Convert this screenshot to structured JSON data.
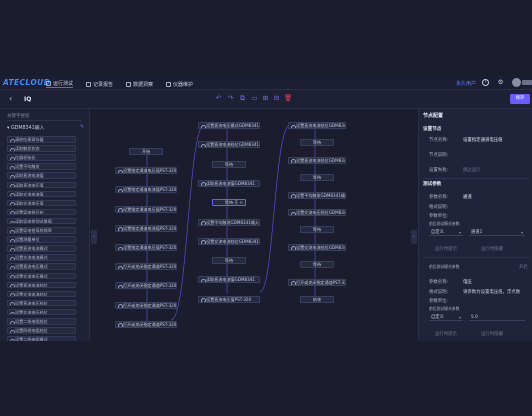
{
  "app": {
    "logo": "ATECLOUD",
    "nav": [
      {
        "label": "运行测试",
        "icon": "monitor-icon"
      },
      {
        "label": "记录报告",
        "icon": "document-icon"
      },
      {
        "label": "数据洞察",
        "icon": "chart-icon"
      },
      {
        "label": "仪器维护",
        "icon": "instrument-icon"
      }
    ],
    "user_link": "永久用户",
    "help_icon": "?",
    "settings_icon": "⚙"
  },
  "toolbar": {
    "back": "‹",
    "flow_title": "IQ",
    "tools": [
      "↶",
      "↷",
      "⧉",
      "▭",
      "⊞",
      "⊟",
      "▤",
      "⎘",
      "🗑"
    ],
    "publish_label": "保存"
  },
  "palette": {
    "search_placeholder": "关键字搜索",
    "group_title": "GDM8341输入",
    "items": [
      "清除仪表寄存器",
      "读取触发状态",
      "仪器初始化",
      "设置平均触发",
      "读取直流电流值",
      "读取直流电压值",
      "读取交流电流值",
      "读取交流电压值",
      "设置导电钳开启",
      "读取导电钳测试量值",
      "设置导电钳采样频率",
      "设置测量单位",
      "设置直流电流模式",
      "设置交流电流模式",
      "设置直流电压模式",
      "设置交流电压模式",
      "设置直流电流档位",
      "设置交流电流档位",
      "设置直流电压档位",
      "设置交流电压档位",
      "设置二线电阻档位",
      "设置四线电阻档位",
      "设置二线电阻模式",
      "设置交流电流档位"
    ]
  },
  "canvas": {
    "col1": [
      "开始",
      "设置指定通道电压值PST-320",
      "设置指定通道电流值PST-320",
      "设置指定通道电压值PST-320",
      "设置指定通道电流值PST-320",
      "设置指定通道电压值PST-320",
      "打开或关闭指定通道PST-320",
      "打开或关闭指定通道PST-320",
      "打开或关闭指定通道PST-320",
      "打开或关闭指定通道PST-320"
    ],
    "col2": [
      "设置直流电压模式GDM8341",
      "设置直流电流档位GDM8341",
      "等待",
      "读取直流电流值GDM8341",
      "等待",
      "设置平均触发GDM8341输入",
      "设置交流电流档位GDM8341",
      "等待",
      "读取直流电流值GDM8341",
      "设置直流电压值PST-320"
    ],
    "col3": [
      "设置直流电流档位GDM8341",
      "等待",
      "设置直流电流档位GDM8341",
      "等待",
      "设置平均触发GDM8341输入",
      "设置交流电压档位GDM8341",
      "等待",
      "设置交流电流档位GDM8341",
      "等待",
      "打开或关闭指定通道PST-3202",
      "结束"
    ],
    "node_actions": "⎘ ✕"
  },
  "panel": {
    "title": "节点配置",
    "basic_title": "设置节点",
    "node_name_label": "节点名称:",
    "node_name_value": "设置指定通道电压值",
    "node_desc_label": "节点说明:",
    "wait_label": "设置失败:",
    "wait_value": "跳过运行",
    "params_title": "测试参数",
    "param_name_label": "参数名称:",
    "param_name_value": "通道",
    "format_label": "格式说明:",
    "unit_label": "参数单位:",
    "default_label": "前后测试模式参数",
    "select_left": "自定义",
    "select_right": "通道1",
    "link_left": "运行时提示",
    "link_right": "运行时隐藏",
    "section2_label": "前后测试模式参数",
    "section2_right": "开启",
    "p2_name_label": "参数名称:",
    "p2_name_value": "电压",
    "p2_format_label": "格式说明:",
    "p2_format_value": "请参数为设置电压值，浮点数",
    "p2_unit_label": "参数单位:",
    "p2_mode_label": "前后测试模式参数",
    "p2_select_left": "自定义",
    "p2_select_value": "5.0",
    "p2_link_left": "运行时提示",
    "p2_link_right": "运行时隐藏"
  }
}
